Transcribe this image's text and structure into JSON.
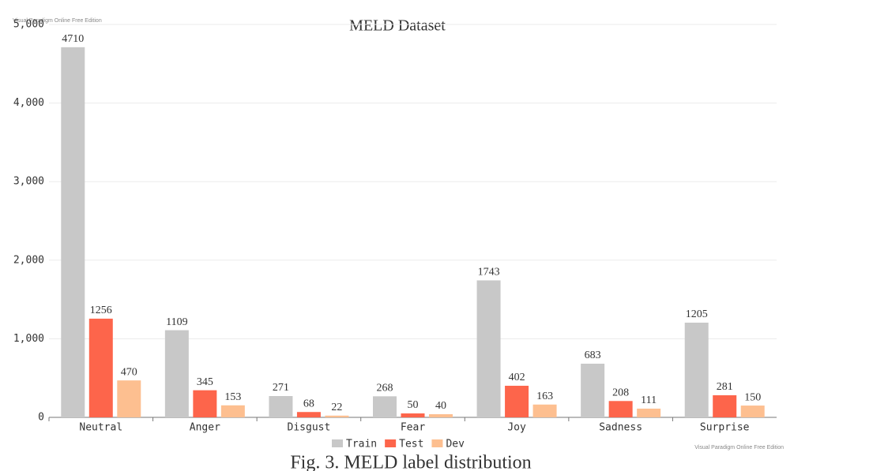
{
  "chart_data": {
    "type": "bar",
    "title": "MELD Dataset",
    "categories": [
      "Neutral",
      "Anger",
      "Disgust",
      "Fear",
      "Joy",
      "Sadness",
      "Surprise"
    ],
    "series": [
      {
        "name": "Train",
        "color": "#c8c8c8",
        "values": [
          4710,
          1109,
          271,
          268,
          1743,
          683,
          1205
        ]
      },
      {
        "name": "Test",
        "color": "#fd654b",
        "values": [
          1256,
          345,
          68,
          50,
          402,
          208,
          281
        ]
      },
      {
        "name": "Dev",
        "color": "#fdbf90",
        "values": [
          470,
          153,
          22,
          40,
          163,
          111,
          150
        ]
      }
    ],
    "ylim": [
      0,
      5000
    ],
    "yticks": [
      0,
      {
        "value": 1000,
        "label": "1,000"
      },
      {
        "value": 2000,
        "label": "2,000"
      },
      {
        "value": 3000,
        "label": "3,000"
      },
      {
        "value": 4000,
        "label": "4,000"
      },
      {
        "value": 5000,
        "label": "5,000"
      }
    ],
    "grid": true,
    "legend": "bottom",
    "annotations": [
      "Visual Paradigm Online Free Edition",
      "Visual Paradigm Online Free Edition"
    ],
    "caption": "Fig. 3.   MELD label distribution"
  }
}
